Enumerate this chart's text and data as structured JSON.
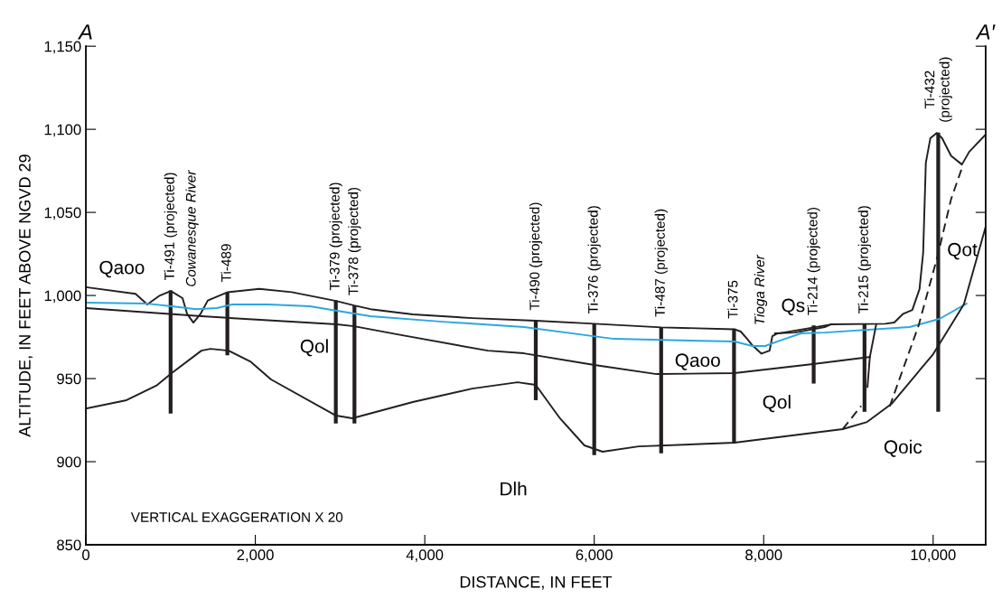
{
  "chart_data": {
    "type": "line",
    "xlabel": "DISTANCE, IN FEET",
    "ylabel": "ALTITUDE, IN FEET ABOVE NGVD 29",
    "xlim": [
      0,
      10620
    ],
    "ylim": [
      850,
      1150
    ],
    "xticks": [
      0,
      {
        "value": 2000,
        "label": "2,000"
      },
      {
        "value": 4000,
        "label": "4,000"
      },
      {
        "value": 6000,
        "label": "6,000"
      },
      {
        "value": 8000,
        "label": "8,000"
      },
      {
        "value": 10000,
        "label": "10,000"
      }
    ],
    "yticks": [
      850,
      900,
      950,
      {
        "value": 1000,
        "label": "1,000"
      },
      {
        "value": 1050,
        "label": "1,050"
      },
      {
        "value": 1100,
        "label": "1,100"
      },
      {
        "value": 1150,
        "label": "1,150"
      }
    ],
    "grid": false,
    "marker": "none",
    "series": [
      {
        "color": "#231f20",
        "x": [
          0,
          586,
          725,
          874,
          1002,
          1141,
          1194,
          1269,
          1354,
          1439,
          1674,
          2047,
          2430,
          2953,
          3166,
          3358,
          3859,
          4562,
          5309,
          6002,
          6790,
          7654,
          7729,
          7803,
          7867,
          7974,
          8070,
          8102,
          8155,
          8795,
          9434,
          9541,
          9647,
          9754,
          9839,
          9882,
          9914,
          9967,
          10042,
          10106,
          10212,
          10340,
          10425,
          10607
        ],
        "values": [
          1005,
          1001,
          994.6,
          1000,
          1002.7,
          998.4,
          989,
          983.7,
          989,
          997,
          1002,
          1004,
          1002,
          996.7,
          994,
          991.8,
          988.6,
          986.4,
          984.8,
          983,
          980.8,
          979.7,
          978.3,
          974,
          970,
          965,
          966.8,
          975.5,
          977,
          982.6,
          983,
          983.7,
          989,
          991.3,
          1003.8,
          1025.5,
          1079.9,
          1094.6,
          1097.8,
          1094.6,
          1084,
          1078.8,
          1086.4,
          1096.2
        ]
      },
      {
        "color": "#29a8e0",
        "x": [
          0,
          725,
          1013,
          1301,
          1546,
          1727,
          2153,
          2644,
          2964,
          3358,
          4211,
          5170,
          5991,
          6236,
          7654,
          7867,
          8017,
          8187,
          8443,
          8720,
          9722,
          10074,
          10394
        ],
        "values": [
          995.7,
          995.1,
          993.5,
          991.8,
          992.4,
          994.6,
          994.6,
          993.5,
          990.8,
          987.5,
          984.2,
          981,
          975.5,
          973.9,
          972.3,
          969.6,
          969.6,
          972.8,
          977.2,
          977.7,
          981,
          985.9,
          995.1
        ]
      },
      {
        "color": "#231f20",
        "x": [
          0,
          1364,
          2963,
          3166,
          3678,
          4744,
          5170,
          6002,
          6737,
          7654,
          8581,
          9253
        ],
        "values": [
          992.4,
          987.5,
          982.6,
          981.5,
          976.6,
          966.8,
          965.2,
          958.2,
          952.7,
          953.3,
          958.7,
          963
        ]
      },
      {
        "color": "#231f20",
        "x": [
          0,
          480,
          831,
          1013,
          1364,
          1471,
          1684,
          1940,
          2185,
          2953,
          3145,
          3859,
          4562,
          5095,
          5309,
          5597,
          5884,
          6098,
          6524,
          7654,
          8933,
          9221,
          9509,
          10000,
          10362,
          10617
        ],
        "values": [
          932,
          937,
          945.7,
          953.3,
          966.8,
          967.9,
          966.8,
          960.3,
          949.5,
          927.7,
          926.1,
          935.9,
          944,
          947.8,
          946.2,
          926,
          909.8,
          906,
          909.2,
          911.4,
          919.6,
          923.9,
          934.8,
          964.7,
          994.6,
          1040.8
        ]
      },
      {
        "color": "#231f20",
        "x": [
          8134,
          8368,
          8720,
          8795
        ],
        "values": [
          977.2,
          977.7,
          981,
          982.6
        ]
      },
      {
        "color": "#231f20",
        "x": [
          9328,
          9253,
          9225
        ],
        "values": [
          982.6,
          963,
          945
        ]
      },
      {
        "color": "#231f20",
        "line_style": "dashed",
        "x": [
          8933,
          9150
        ],
        "values": [
          919.6,
          933.5
        ]
      },
      {
        "color": "#231f20",
        "line_style": "dashed",
        "x": [
          9487,
          9829,
          10053,
          10212,
          10351
        ],
        "values": [
          933.2,
          982,
          1023.9,
          1058,
          1078.3
        ]
      },
      {
        "type": "bar",
        "color": "#231f20",
        "x": [
          1000,
          1670,
          2950,
          3170,
          5310,
          6000,
          6790,
          7650,
          8590,
          9190,
          10060
        ],
        "base": [
          929,
          964,
          923,
          923,
          937,
          904,
          905,
          911,
          947,
          930,
          930
        ],
        "values": [
          74,
          38,
          74,
          71,
          48,
          79,
          76,
          69,
          35,
          53,
          168
        ],
        "value_labels": [
          "Ti-491 (projected)",
          "Ti-489",
          "Ti-379 (projected)",
          "Ti-378 (projected)",
          "Ti-490 (projected)",
          "Ti-376 (projected)",
          "Ti-487 (projected)",
          "Ti-375",
          "Ti-214 (projected)",
          "Ti-215 (projected)",
          "Ti-432\n(projected)"
        ]
      }
    ],
    "annotations": [
      "A",
      "A′",
      "VERTICAL EXAGGERATION X 20",
      "Cowanesque River",
      "Tioga River",
      "Qaoo",
      "Qol",
      "Qaoo",
      "Qol",
      "Dlh",
      "Qs",
      "Qoic",
      "Qot"
    ]
  }
}
